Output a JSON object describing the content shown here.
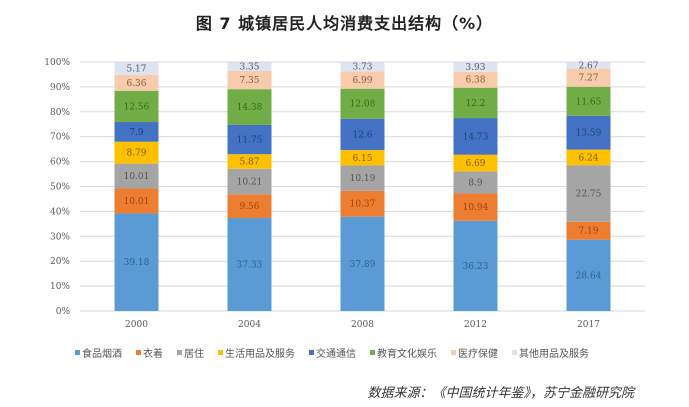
{
  "chart_data": {
    "type": "bar",
    "stacked": true,
    "title": "图 7    城镇居民人均消费支出结构（%）",
    "categories": [
      "2000",
      "2004",
      "2008",
      "2012",
      "2017"
    ],
    "ylim": [
      0,
      100
    ],
    "yticks": [
      "0%",
      "10%",
      "20%",
      "30%",
      "40%",
      "50%",
      "60%",
      "70%",
      "80%",
      "90%",
      "100%"
    ],
    "grid": true,
    "legend_position": "bottom",
    "series": [
      {
        "name": "食品烟酒",
        "color": "#5b9bd5",
        "label_color": "#2e5f8f",
        "values": [
          39.18,
          37.33,
          37.89,
          36.23,
          28.64
        ]
      },
      {
        "name": "衣着",
        "color": "#ed7d31",
        "label_color": "#9c4512",
        "values": [
          10.01,
          9.56,
          10.37,
          10.94,
          7.19
        ]
      },
      {
        "name": "居住",
        "color": "#a5a5a5",
        "label_color": "#555555",
        "values": [
          10.01,
          10.21,
          10.19,
          8.9,
          22.75
        ]
      },
      {
        "name": "生活用品及服务",
        "color": "#ffc000",
        "label_color": "#7a5a00",
        "values": [
          8.79,
          5.87,
          6.15,
          6.69,
          6.24
        ]
      },
      {
        "name": "交通通信",
        "color": "#4472c4",
        "label_color": "#22407a",
        "values": [
          7.9,
          11.75,
          12.6,
          14.73,
          13.59
        ]
      },
      {
        "name": "教育文化娱乐",
        "color": "#70ad47",
        "label_color": "#3a6a1e",
        "values": [
          12.56,
          14.38,
          12.08,
          12.2,
          11.65
        ]
      },
      {
        "name": "医疗保健",
        "color": "#f8cbad",
        "label_color": "#8a5a3a",
        "values": [
          6.36,
          7.35,
          6.99,
          6.38,
          7.27
        ]
      },
      {
        "name": "其他用品及服务",
        "color": "#dde3f0",
        "label_color": "#555a66",
        "values": [
          5.17,
          3.35,
          3.73,
          3.93,
          2.67
        ]
      }
    ]
  },
  "source": "数据来源：《中国统计年鉴》，苏宁金融研究院"
}
